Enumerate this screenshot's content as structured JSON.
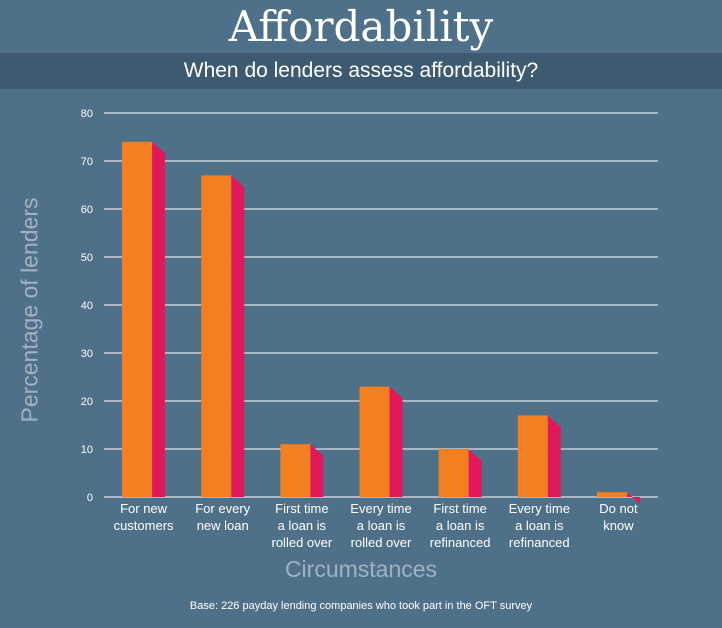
{
  "header": {
    "title": "Affordability",
    "subtitle": "When do lenders assess affordability?"
  },
  "footnote": "Base: 226 payday lending companies who took part in the OFT survey",
  "colors": {
    "background": "#4f7089",
    "subtitle_bar": "#3d5a70",
    "bar_front": "#f47f20",
    "bar_side": "#e3185b",
    "axis_label": "#9fb3c4"
  },
  "chart_data": {
    "type": "bar",
    "title": "When do lenders assess affordability?",
    "xlabel": "Circumstances",
    "ylabel": "Percentage of lenders",
    "ylim": [
      0,
      80
    ],
    "yticks": [
      0,
      10,
      20,
      30,
      40,
      50,
      60,
      70,
      80
    ],
    "grid": true,
    "categories": [
      [
        "For new",
        "customers"
      ],
      [
        "For every",
        "new loan"
      ],
      [
        "First time",
        "a loan is",
        "rolled over"
      ],
      [
        "Every time",
        "a loan is",
        "rolled over"
      ],
      [
        "First time",
        "a loan is",
        "refinanced"
      ],
      [
        "Every time",
        "a loan is",
        "refinanced"
      ],
      [
        "Do not",
        "know"
      ]
    ],
    "values": [
      74,
      67,
      11,
      23,
      10,
      17,
      1
    ]
  }
}
